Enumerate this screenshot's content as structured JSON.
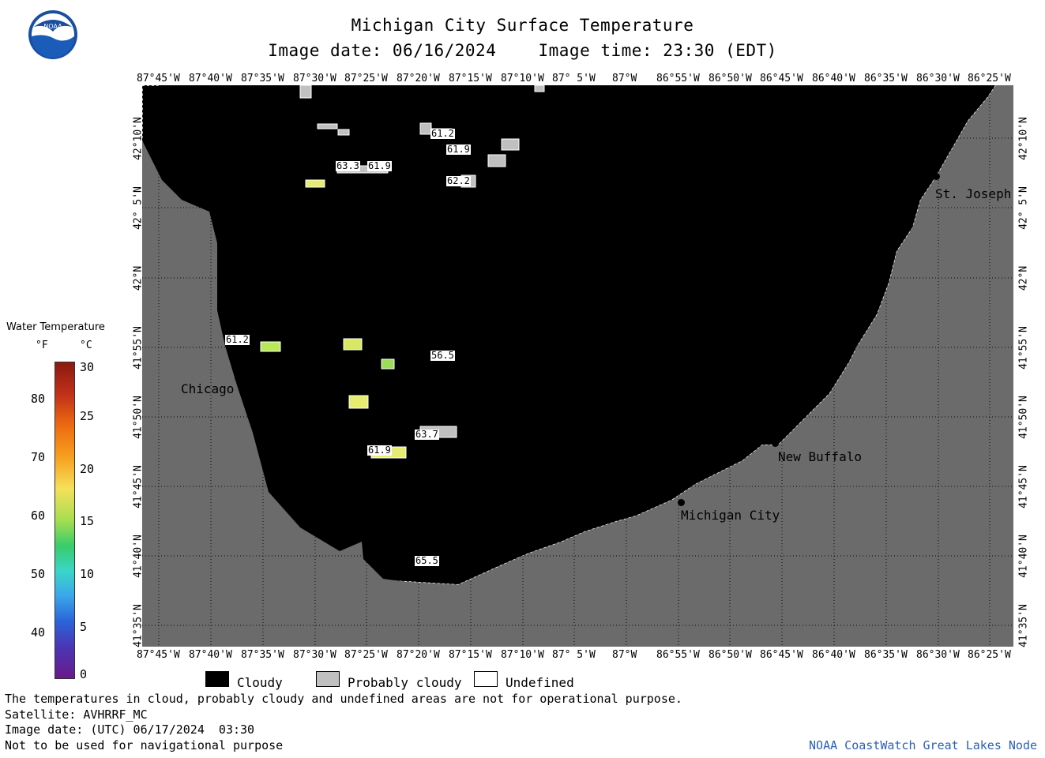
{
  "title": "Michigan City Surface Temperature",
  "image_date": "Image date: 06/16/2024",
  "image_time": "Image time: 23:30 (EDT)",
  "lon_ticks": [
    "87°45'W",
    "87°40'W",
    "87°35'W",
    "87°30'W",
    "87°25'W",
    "87°20'W",
    "87°15'W",
    "87°10'W",
    "87° 5'W",
    "87°W",
    "86°55'W",
    "86°50'W",
    "86°45'W",
    "86°40'W",
    "86°35'W",
    "86°30'W",
    "86°25'W"
  ],
  "lat_ticks": [
    "42°10'N",
    "42° 5'N",
    "42°N",
    "41°55'N",
    "41°50'N",
    "41°45'N",
    "41°40'N",
    "41°35'N"
  ],
  "colorbar": {
    "title": "Water Temperature",
    "unit_f": "°F",
    "unit_c": "°C",
    "f_ticks": [
      "80",
      "70",
      "60",
      "50",
      "40"
    ],
    "c_ticks": [
      "30",
      "25",
      "20",
      "15",
      "10",
      "5",
      "0"
    ]
  },
  "cities": {
    "chicago": "Chicago",
    "michigan_city": "Michigan City",
    "new_buffalo": "New Buffalo",
    "st_joseph": "St. Joseph"
  },
  "temps": [
    "61.2",
    "61.9",
    "63.3",
    "61.9",
    "62.2",
    "61.2",
    "56.5",
    "63.7",
    "61.9",
    "65.5"
  ],
  "key": {
    "cloudy": "Cloudy",
    "probably_cloudy": "Probably cloudy",
    "undefined": "Undefined"
  },
  "notes": {
    "disclaimer": "The temperatures in cloud, probably cloudy and undefined areas are not for operational purpose.",
    "satellite": "Satellite: AVHRRF_MC",
    "utc_date": "Image date: (UTC) 06/17/2024  03:30",
    "nav": "Not to be used for navigational purpose",
    "credit": "NOAA CoastWatch Great Lakes Node"
  },
  "logo_text": "NOAA",
  "colors": {
    "cloudy": "#000000",
    "land": "#6b6b6b",
    "probably_cloudy": "#c0c0c0",
    "undefined": "#ffffff",
    "credit": "#2a60b8"
  }
}
